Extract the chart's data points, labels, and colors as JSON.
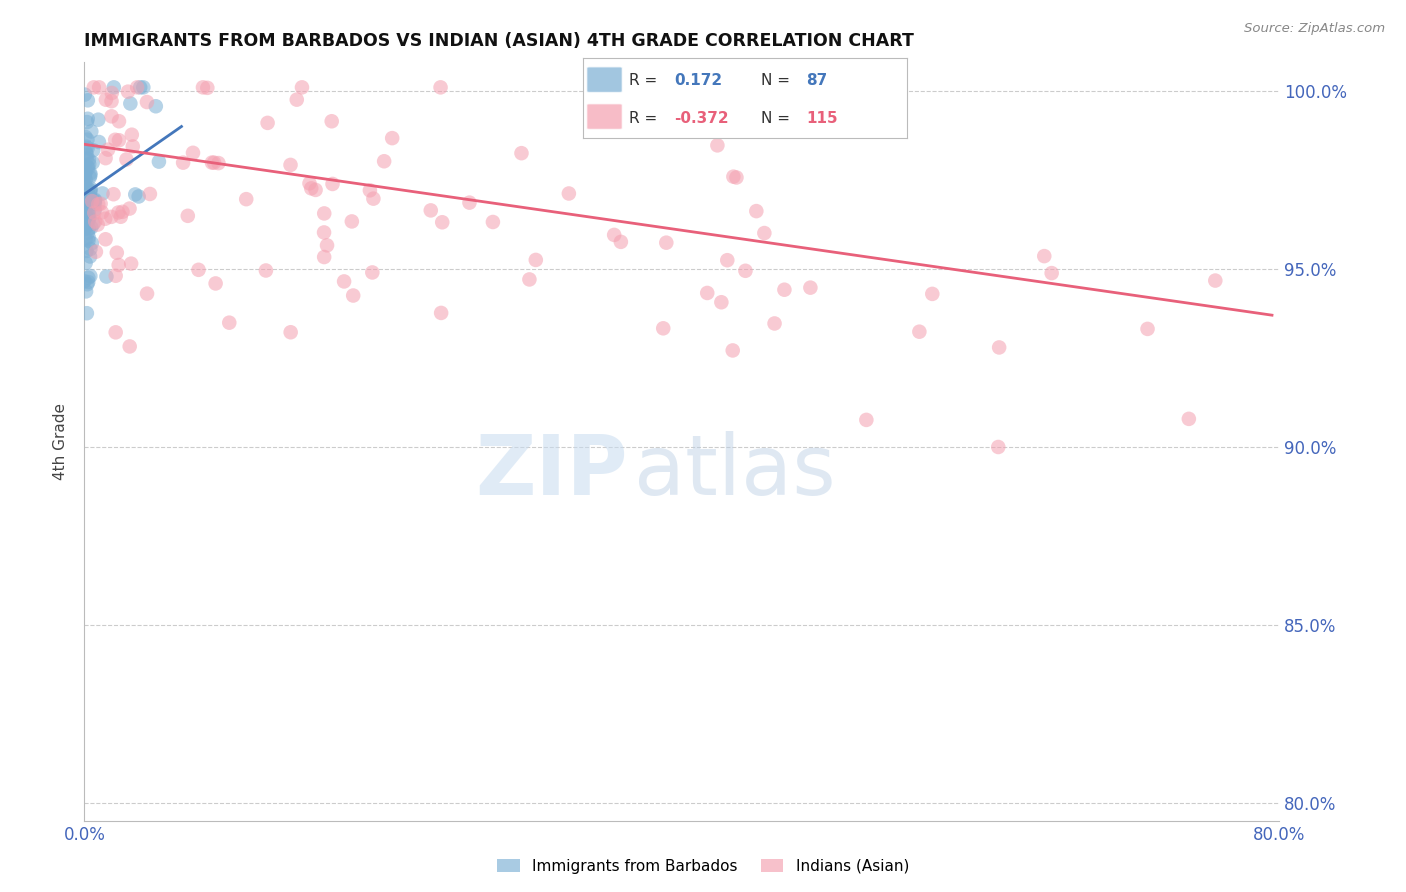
{
  "title": "IMMIGRANTS FROM BARBADOS VS INDIAN (ASIAN) 4TH GRADE CORRELATION CHART",
  "source": "Source: ZipAtlas.com",
  "ylabel": "4th Grade",
  "xmin": 0.0,
  "xmax": 0.8,
  "ymin": 0.795,
  "ymax": 1.008,
  "yticks": [
    0.8,
    0.85,
    0.9,
    0.95,
    1.0
  ],
  "ytick_labels": [
    "80.0%",
    "85.0%",
    "90.0%",
    "95.0%",
    "100.0%"
  ],
  "xticks": [
    0.0,
    0.1,
    0.2,
    0.3,
    0.4,
    0.5,
    0.6,
    0.7,
    0.8
  ],
  "xtick_labels": [
    "0.0%",
    "",
    "",
    "",
    "",
    "",
    "",
    "",
    "80.0%"
  ],
  "blue_R": 0.172,
  "blue_N": 87,
  "pink_R": -0.372,
  "pink_N": 115,
  "blue_color": "#7BAFD4",
  "pink_color": "#F4A0B0",
  "blue_line_color": "#4477BB",
  "pink_line_color": "#E8607A",
  "legend_label_blue": "Immigrants from Barbados",
  "legend_label_pink": "Indians (Asian)",
  "title_color": "#111111",
  "axis_label_color": "#444444",
  "tick_label_color": "#4466BB",
  "grid_color": "#CCCCCC",
  "pink_trend_x0": 0.0,
  "pink_trend_y0": 0.985,
  "pink_trend_x1": 0.795,
  "pink_trend_y1": 0.937,
  "blue_trend_x0": 0.0,
  "blue_trend_y0": 0.971,
  "blue_trend_x1": 0.065,
  "blue_trend_y1": 0.99
}
